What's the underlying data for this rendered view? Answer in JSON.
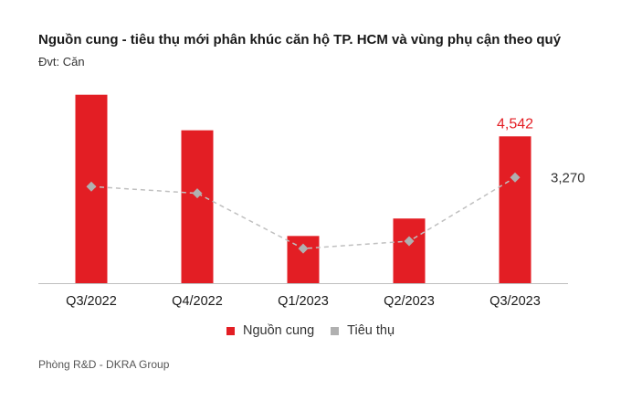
{
  "header": {
    "title": "Nguồn cung - tiêu thụ mới phân khúc căn hộ TP. HCM và vùng phụ cận theo quý",
    "unit": "Đvt: Căn"
  },
  "legend": {
    "supply_label": "Nguồn cung",
    "sales_label": "Tiêu thụ"
  },
  "footer": {
    "source": "Phòng R&D - DKRA Group"
  },
  "colors": {
    "supply": "#e31e24",
    "sales": "#b0b0b0",
    "sales_line": "#c0c0c0",
    "axis": "#bfbfbf",
    "supply_label": "#e31e24",
    "sales_label": "#333333"
  },
  "chart_data": {
    "type": "bar",
    "categories": [
      "Q3/2022",
      "Q4/2022",
      "Q1/2023",
      "Q2/2023",
      "Q3/2023"
    ],
    "series": [
      {
        "name": "Nguồn cung",
        "type": "bar",
        "values": [
          5830,
          4730,
          1460,
          2000,
          4542
        ],
        "labels": [
          "",
          "",
          "",
          "",
          "4,542"
        ]
      },
      {
        "name": "Tiêu thụ",
        "type": "line",
        "values": [
          2990,
          2780,
          1070,
          1300,
          3270
        ],
        "labels": [
          "",
          "",
          "",
          "",
          "3,270"
        ]
      }
    ],
    "ylim": [
      0,
      6500
    ],
    "grid": false,
    "legend_position": "bottom"
  }
}
